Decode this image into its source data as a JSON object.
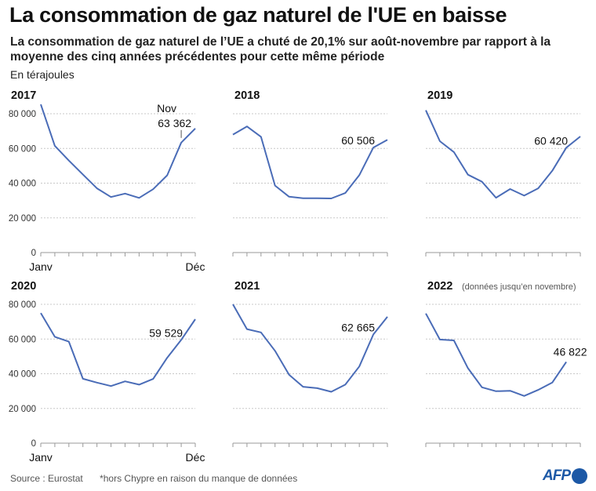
{
  "title": "La consommation de gaz naturel de l'UE en baisse",
  "subtitle": "La consommation de gaz naturel de l’UE a chuté de 20,1% sur août-novembre par rapport à la moyenne des cinq années précédentes pour cette même période",
  "unit": "En térajoules",
  "footer": {
    "source": "Source : Eurostat",
    "note": "*hors Chypre en raison du manque de données"
  },
  "logo": "AFP",
  "colors": {
    "line": "#4a6cb7",
    "grid": "#c8c8c8",
    "logo": "#1c58a6"
  },
  "chart_data": {
    "type": "line",
    "x_first_label": "Janv",
    "x_last_label": "Déc",
    "months": 12,
    "ylim": [
      0,
      80000
    ],
    "yticks": [
      0,
      20000,
      40000,
      60000,
      80000
    ],
    "ytick_labels": [
      "0",
      "20 000",
      "40 000",
      "60 000",
      "80 000"
    ],
    "grid": true,
    "panels": [
      {
        "year": "2017",
        "note": "",
        "values": [
          85400,
          61500,
          53000,
          45000,
          37000,
          32000,
          34000,
          31500,
          36500,
          44500,
          63362,
          71500
        ],
        "annotation": "63 362",
        "annotation_month": "Nov"
      },
      {
        "year": "2018",
        "note": "",
        "values": [
          68000,
          72700,
          66700,
          38600,
          32200,
          31300,
          31300,
          31200,
          34300,
          44600,
          60506,
          65000
        ],
        "annotation": "60 506",
        "annotation_month": ""
      },
      {
        "year": "2019",
        "note": "",
        "values": [
          82000,
          64200,
          57900,
          44900,
          40800,
          31600,
          36600,
          32800,
          37000,
          47100,
          60420,
          66900
        ],
        "annotation": "60 420",
        "annotation_month": ""
      },
      {
        "year": "2020",
        "note": "",
        "values": [
          75000,
          61300,
          58500,
          37100,
          34900,
          32900,
          35600,
          33700,
          37000,
          49200,
          59529,
          71400
        ],
        "annotation": "59 529",
        "annotation_month": ""
      },
      {
        "year": "2021",
        "note": "",
        "values": [
          80000,
          65700,
          63800,
          53200,
          39400,
          32500,
          31700,
          29600,
          33700,
          44200,
          62665,
          72800
        ],
        "annotation": "62 665",
        "annotation_month": ""
      },
      {
        "year": "2022",
        "note": "(données jusqu’en novembre)",
        "values": [
          74700,
          59700,
          59200,
          43200,
          32200,
          29900,
          30200,
          27200,
          30700,
          34900,
          46822
        ],
        "annotation": "46 822",
        "annotation_month": ""
      }
    ]
  }
}
